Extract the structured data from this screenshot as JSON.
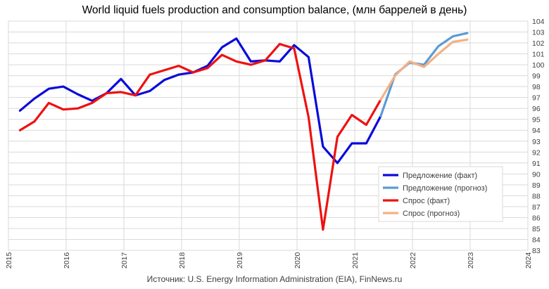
{
  "chart_data": {
    "type": "line",
    "title": "World liquid fuels production and  consumption balance, (млн  баррелей в день)",
    "source": "Источник: U.S. Energy Information Administration (EIA), FinNews.ru",
    "x_tick_labels": [
      "2015",
      "2016",
      "2017",
      "2018",
      "2019",
      "2020",
      "2021",
      "2022",
      "2023",
      "2024"
    ],
    "xlim": [
      2015,
      2024
    ],
    "y_tick_labels": [
      "83",
      "84",
      "85",
      "86",
      "87",
      "88",
      "89",
      "90",
      "91",
      "92",
      "93",
      "94",
      "95",
      "96",
      "97",
      "98",
      "99",
      "100",
      "101",
      "102",
      "103",
      "104"
    ],
    "ylim": [
      83,
      104
    ],
    "grid": true,
    "legend_position": "inside-bottom-right",
    "series": [
      {
        "name": "Предложение (факт)",
        "color": "#0a0adc",
        "x": [
          2015.2,
          2015.45,
          2015.7,
          2015.95,
          2016.2,
          2016.45,
          2016.7,
          2016.95,
          2017.2,
          2017.45,
          2017.7,
          2017.95,
          2018.2,
          2018.45,
          2018.7,
          2018.95,
          2019.2,
          2019.45,
          2019.7,
          2019.95,
          2020.2,
          2020.45,
          2020.7,
          2020.95,
          2021.2,
          2021.45
        ],
        "y": [
          95.8,
          96.9,
          97.8,
          98.0,
          97.3,
          96.7,
          97.4,
          98.7,
          97.2,
          97.6,
          98.6,
          99.1,
          99.3,
          99.9,
          101.6,
          102.4,
          100.3,
          100.4,
          100.3,
          101.8,
          100.7,
          92.5,
          91.0,
          92.8,
          92.8,
          95.3
        ]
      },
      {
        "name": "Предложение (прогноз)",
        "color": "#5b9bd5",
        "x": [
          2021.45,
          2021.7,
          2021.95,
          2022.2,
          2022.45,
          2022.7,
          2022.95
        ],
        "y": [
          95.3,
          99.1,
          100.2,
          100.0,
          101.7,
          102.6,
          102.9
        ]
      },
      {
        "name": "Спрос (факт)",
        "color": "#ee1111",
        "x": [
          2015.2,
          2015.45,
          2015.7,
          2015.95,
          2016.2,
          2016.45,
          2016.7,
          2016.95,
          2017.2,
          2017.45,
          2017.7,
          2017.95,
          2018.2,
          2018.45,
          2018.7,
          2018.95,
          2019.2,
          2019.45,
          2019.7,
          2019.95,
          2020.2,
          2020.45,
          2020.7,
          2020.95,
          2021.2,
          2021.45
        ],
        "y": [
          94.0,
          94.8,
          96.5,
          95.9,
          96.0,
          96.5,
          97.4,
          97.5,
          97.2,
          99.1,
          99.5,
          99.9,
          99.3,
          99.7,
          100.9,
          100.3,
          100.0,
          100.4,
          101.9,
          101.5,
          95.2,
          84.9,
          93.4,
          95.4,
          94.5,
          96.8
        ]
      },
      {
        "name": "Спрос (прогноз)",
        "color": "#f4b183",
        "x": [
          2021.45,
          2021.7,
          2021.95,
          2022.2,
          2022.45,
          2022.7,
          2022.95
        ],
        "y": [
          96.8,
          99.0,
          100.3,
          99.8,
          101.0,
          102.1,
          102.3
        ]
      }
    ]
  }
}
